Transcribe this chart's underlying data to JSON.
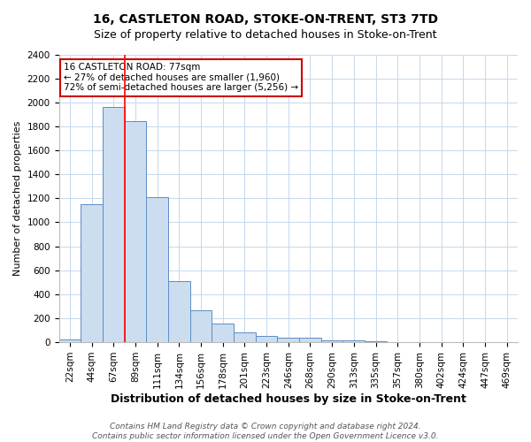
{
  "title_line1": "16, CASTLETON ROAD, STOKE-ON-TRENT, ST3 7TD",
  "title_line2": "Size of property relative to detached houses in Stoke-on-Trent",
  "xlabel": "Distribution of detached houses by size in Stoke-on-Trent",
  "ylabel": "Number of detached properties",
  "bar_labels": [
    "22sqm",
    "44sqm",
    "67sqm",
    "89sqm",
    "111sqm",
    "134sqm",
    "156sqm",
    "178sqm",
    "201sqm",
    "223sqm",
    "246sqm",
    "268sqm",
    "290sqm",
    "313sqm",
    "335sqm",
    "357sqm",
    "380sqm",
    "402sqm",
    "424sqm",
    "447sqm",
    "469sqm"
  ],
  "bar_values": [
    25,
    1150,
    1960,
    1840,
    1210,
    510,
    265,
    155,
    80,
    50,
    40,
    35,
    18,
    14,
    5,
    4,
    3,
    3,
    2,
    2,
    2
  ],
  "bar_color": "#ccddf0",
  "bar_edge_color": "#5b8ec4",
  "red_line_index": 2,
  "annotation_line1": "16 CASTLETON ROAD: 77sqm",
  "annotation_line2": "← 27% of detached houses are smaller (1,960)",
  "annotation_line3": "72% of semi-detached houses are larger (5,256) →",
  "annotation_box_color": "#ffffff",
  "annotation_box_edge_color": "#cc0000",
  "ylim": [
    0,
    2400
  ],
  "yticks": [
    0,
    200,
    400,
    600,
    800,
    1000,
    1200,
    1400,
    1600,
    1800,
    2000,
    2200,
    2400
  ],
  "footnote1": "Contains HM Land Registry data © Crown copyright and database right 2024.",
  "footnote2": "Contains public sector information licensed under the Open Government Licence v3.0.",
  "bg_color": "#ffffff",
  "grid_color": "#c5d8ec",
  "title1_fontsize": 10,
  "title2_fontsize": 9,
  "xlabel_fontsize": 9,
  "ylabel_fontsize": 8,
  "tick_fontsize": 7.5,
  "annotation_fontsize": 7.5,
  "footnote_fontsize": 6.5
}
